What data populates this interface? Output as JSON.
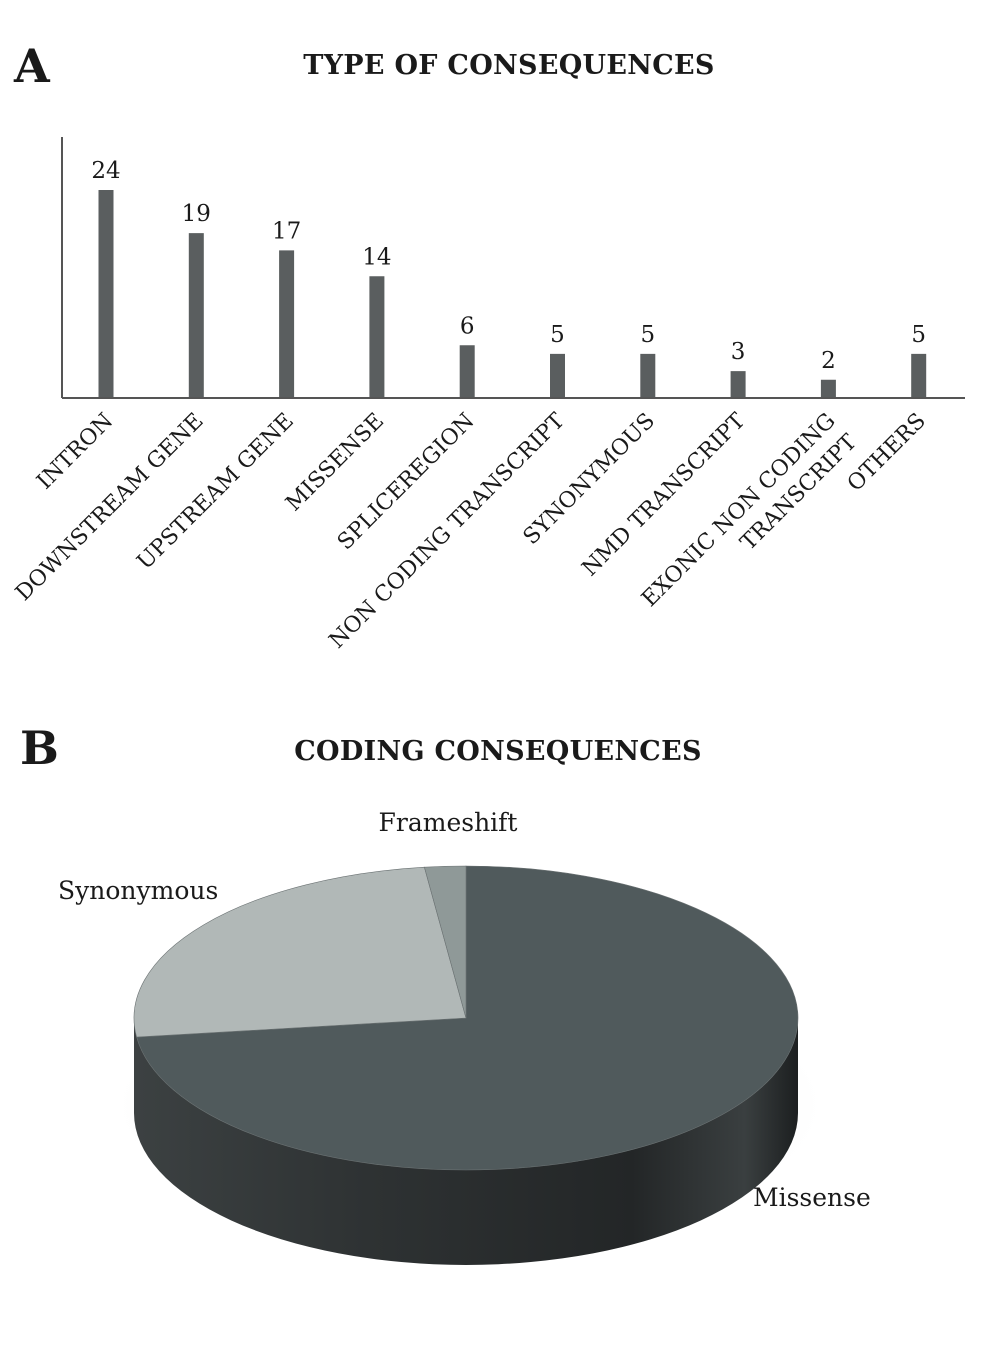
{
  "panel_a": {
    "letter": "A"
  },
  "panel_b": {
    "letter": "B"
  },
  "colors": {
    "bar": "#5a5e5f",
    "axis": "#555555",
    "missense": "#505a5c",
    "synonymous": "#b1b8b7",
    "frameshift": "#8f9998",
    "text": "#1a1a1a"
  },
  "chart_data": [
    {
      "type": "bar",
      "title": "TYPE OF CONSEQUENCES",
      "xlabel": "",
      "ylabel": "",
      "ylim": [
        0,
        24
      ],
      "categories": [
        "INTRON",
        "DOWNSTREAM GENE",
        "UPSTREAM GENE",
        "MISSENSE",
        "SPLICEREGION",
        "NON CODING TRANSCRIPT",
        "SYNONYMOUS",
        "NMD TRANSCRIPT",
        "EXONIC NON CODING TRANSCRIPT",
        "OTHERS"
      ],
      "category_lines": [
        [
          "INTRON"
        ],
        [
          "DOWNSTREAM GENE"
        ],
        [
          "UPSTREAM GENE"
        ],
        [
          "MISSENSE"
        ],
        [
          "SPLICEREGION"
        ],
        [
          "NON CODING TRANSCRIPT"
        ],
        [
          "SYNONYMOUS"
        ],
        [
          "NMD TRANSCRIPT"
        ],
        [
          "EXONIC NON CODING",
          "TRANSCRIPT"
        ],
        [
          "OTHERS"
        ]
      ],
      "values": [
        24,
        19,
        17,
        14,
        6,
        5,
        5,
        3,
        2,
        5
      ],
      "data_labels": [
        "24",
        "19",
        "17",
        "14",
        "6",
        "5",
        "5",
        "3",
        "2",
        "5"
      ],
      "grid": false,
      "legend": "none"
    },
    {
      "type": "pie",
      "title": "CODING CONSEQUENCES",
      "labels": [
        "Missense",
        "Synonymous",
        "Frameshift"
      ],
      "values": [
        73,
        25,
        2
      ],
      "unit": "approx. percent of coding consequences",
      "grid": false,
      "legend": "none"
    }
  ]
}
